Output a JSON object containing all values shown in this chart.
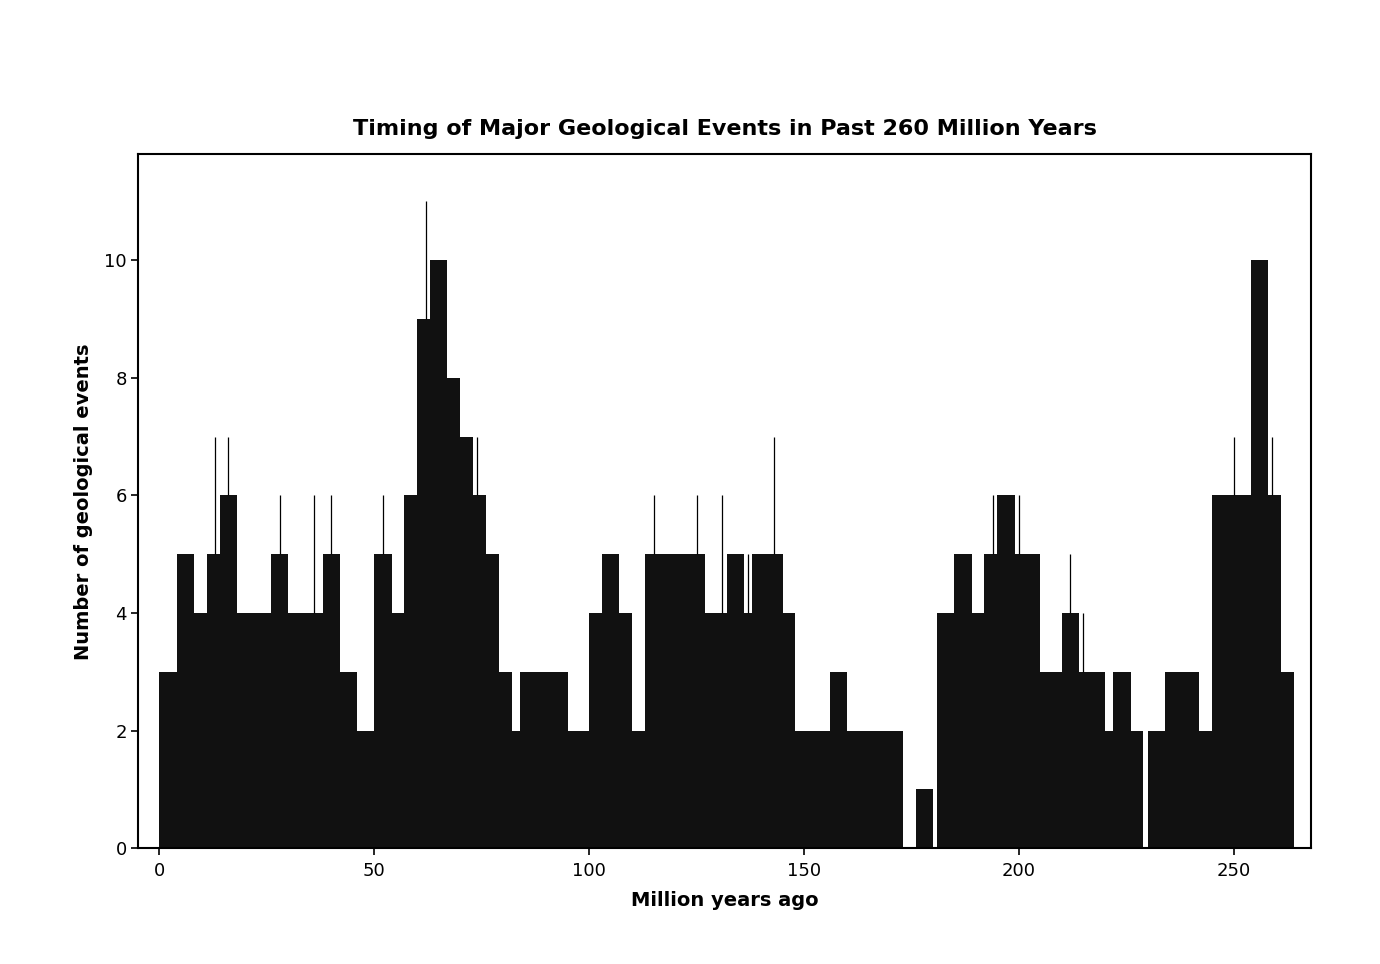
{
  "title": "Timing of Major Geological Events in Past 260 Million Years",
  "xlabel": "Million years ago",
  "ylabel": "Number of geological events",
  "xlim": [
    -5,
    268
  ],
  "ylim": [
    0,
    11.8
  ],
  "yticks": [
    0,
    2,
    4,
    6,
    8,
    10
  ],
  "xticks": [
    0,
    50,
    100,
    150,
    200,
    250
  ],
  "background_color": "#ffffff",
  "bar_color": "#111111",
  "title_fontsize": 16,
  "label_fontsize": 14,
  "tick_fontsize": 13,
  "bar_width": 4.0,
  "bars": [
    {
      "x": 2,
      "height": 3,
      "spike_top": 0
    },
    {
      "x": 6,
      "height": 5,
      "spike_top": 0
    },
    {
      "x": 10,
      "height": 4,
      "spike_top": 0
    },
    {
      "x": 13,
      "height": 5,
      "spike_top": 7
    },
    {
      "x": 16,
      "height": 6,
      "spike_top": 7
    },
    {
      "x": 20,
      "height": 4,
      "spike_top": 0
    },
    {
      "x": 24,
      "height": 4,
      "spike_top": 0
    },
    {
      "x": 28,
      "height": 5,
      "spike_top": 6
    },
    {
      "x": 32,
      "height": 4,
      "spike_top": 0
    },
    {
      "x": 36,
      "height": 4,
      "spike_top": 6
    },
    {
      "x": 40,
      "height": 5,
      "spike_top": 6
    },
    {
      "x": 44,
      "height": 3,
      "spike_top": 0
    },
    {
      "x": 48,
      "height": 2,
      "spike_top": 0
    },
    {
      "x": 52,
      "height": 5,
      "spike_top": 6
    },
    {
      "x": 56,
      "height": 4,
      "spike_top": 0
    },
    {
      "x": 59,
      "height": 6,
      "spike_top": 0
    },
    {
      "x": 62,
      "height": 9,
      "spike_top": 11
    },
    {
      "x": 65,
      "height": 10,
      "spike_top": 0
    },
    {
      "x": 68,
      "height": 8,
      "spike_top": 0
    },
    {
      "x": 71,
      "height": 7,
      "spike_top": 0
    },
    {
      "x": 74,
      "height": 6,
      "spike_top": 7
    },
    {
      "x": 77,
      "height": 5,
      "spike_top": 0
    },
    {
      "x": 80,
      "height": 3,
      "spike_top": 0
    },
    {
      "x": 83,
      "height": 2,
      "spike_top": 0
    },
    {
      "x": 86,
      "height": 3,
      "spike_top": 0
    },
    {
      "x": 89,
      "height": 3,
      "spike_top": 0
    },
    {
      "x": 93,
      "height": 3,
      "spike_top": 0
    },
    {
      "x": 96,
      "height": 2,
      "spike_top": 0
    },
    {
      "x": 99,
      "height": 2,
      "spike_top": 0
    },
    {
      "x": 102,
      "height": 4,
      "spike_top": 0
    },
    {
      "x": 105,
      "height": 5,
      "spike_top": 0
    },
    {
      "x": 108,
      "height": 4,
      "spike_top": 0
    },
    {
      "x": 111,
      "height": 2,
      "spike_top": 0
    },
    {
      "x": 115,
      "height": 5,
      "spike_top": 6
    },
    {
      "x": 119,
      "height": 5,
      "spike_top": 0
    },
    {
      "x": 122,
      "height": 5,
      "spike_top": 0
    },
    {
      "x": 125,
      "height": 5,
      "spike_top": 6
    },
    {
      "x": 128,
      "height": 4,
      "spike_top": 0
    },
    {
      "x": 131,
      "height": 4,
      "spike_top": 6
    },
    {
      "x": 134,
      "height": 5,
      "spike_top": 0
    },
    {
      "x": 137,
      "height": 4,
      "spike_top": 5
    },
    {
      "x": 140,
      "height": 5,
      "spike_top": 0
    },
    {
      "x": 143,
      "height": 5,
      "spike_top": 7
    },
    {
      "x": 146,
      "height": 4,
      "spike_top": 0
    },
    {
      "x": 149,
      "height": 2,
      "spike_top": 0
    },
    {
      "x": 152,
      "height": 2,
      "spike_top": 0
    },
    {
      "x": 155,
      "height": 2,
      "spike_top": 0
    },
    {
      "x": 158,
      "height": 3,
      "spike_top": 0
    },
    {
      "x": 161,
      "height": 2,
      "spike_top": 0
    },
    {
      "x": 164,
      "height": 2,
      "spike_top": 0
    },
    {
      "x": 168,
      "height": 2,
      "spike_top": 0
    },
    {
      "x": 171,
      "height": 2,
      "spike_top": 0
    },
    {
      "x": 178,
      "height": 1,
      "spike_top": 0
    },
    {
      "x": 183,
      "height": 4,
      "spike_top": 0
    },
    {
      "x": 187,
      "height": 5,
      "spike_top": 0
    },
    {
      "x": 191,
      "height": 4,
      "spike_top": 0
    },
    {
      "x": 194,
      "height": 5,
      "spike_top": 6
    },
    {
      "x": 197,
      "height": 6,
      "spike_top": 0
    },
    {
      "x": 200,
      "height": 5,
      "spike_top": 6
    },
    {
      "x": 203,
      "height": 5,
      "spike_top": 0
    },
    {
      "x": 206,
      "height": 3,
      "spike_top": 0
    },
    {
      "x": 209,
      "height": 3,
      "spike_top": 0
    },
    {
      "x": 212,
      "height": 4,
      "spike_top": 5
    },
    {
      "x": 215,
      "height": 3,
      "spike_top": 4
    },
    {
      "x": 218,
      "height": 3,
      "spike_top": 0
    },
    {
      "x": 221,
      "height": 2,
      "spike_top": 0
    },
    {
      "x": 224,
      "height": 3,
      "spike_top": 0
    },
    {
      "x": 227,
      "height": 2,
      "spike_top": 0
    },
    {
      "x": 232,
      "height": 2,
      "spike_top": 0
    },
    {
      "x": 236,
      "height": 3,
      "spike_top": 0
    },
    {
      "x": 240,
      "height": 3,
      "spike_top": 0
    },
    {
      "x": 243,
      "height": 2,
      "spike_top": 0
    },
    {
      "x": 247,
      "height": 6,
      "spike_top": 0
    },
    {
      "x": 250,
      "height": 6,
      "spike_top": 7
    },
    {
      "x": 253,
      "height": 6,
      "spike_top": 0
    },
    {
      "x": 256,
      "height": 10,
      "spike_top": 0
    },
    {
      "x": 259,
      "height": 6,
      "spike_top": 7
    },
    {
      "x": 262,
      "height": 3,
      "spike_top": 0
    }
  ]
}
